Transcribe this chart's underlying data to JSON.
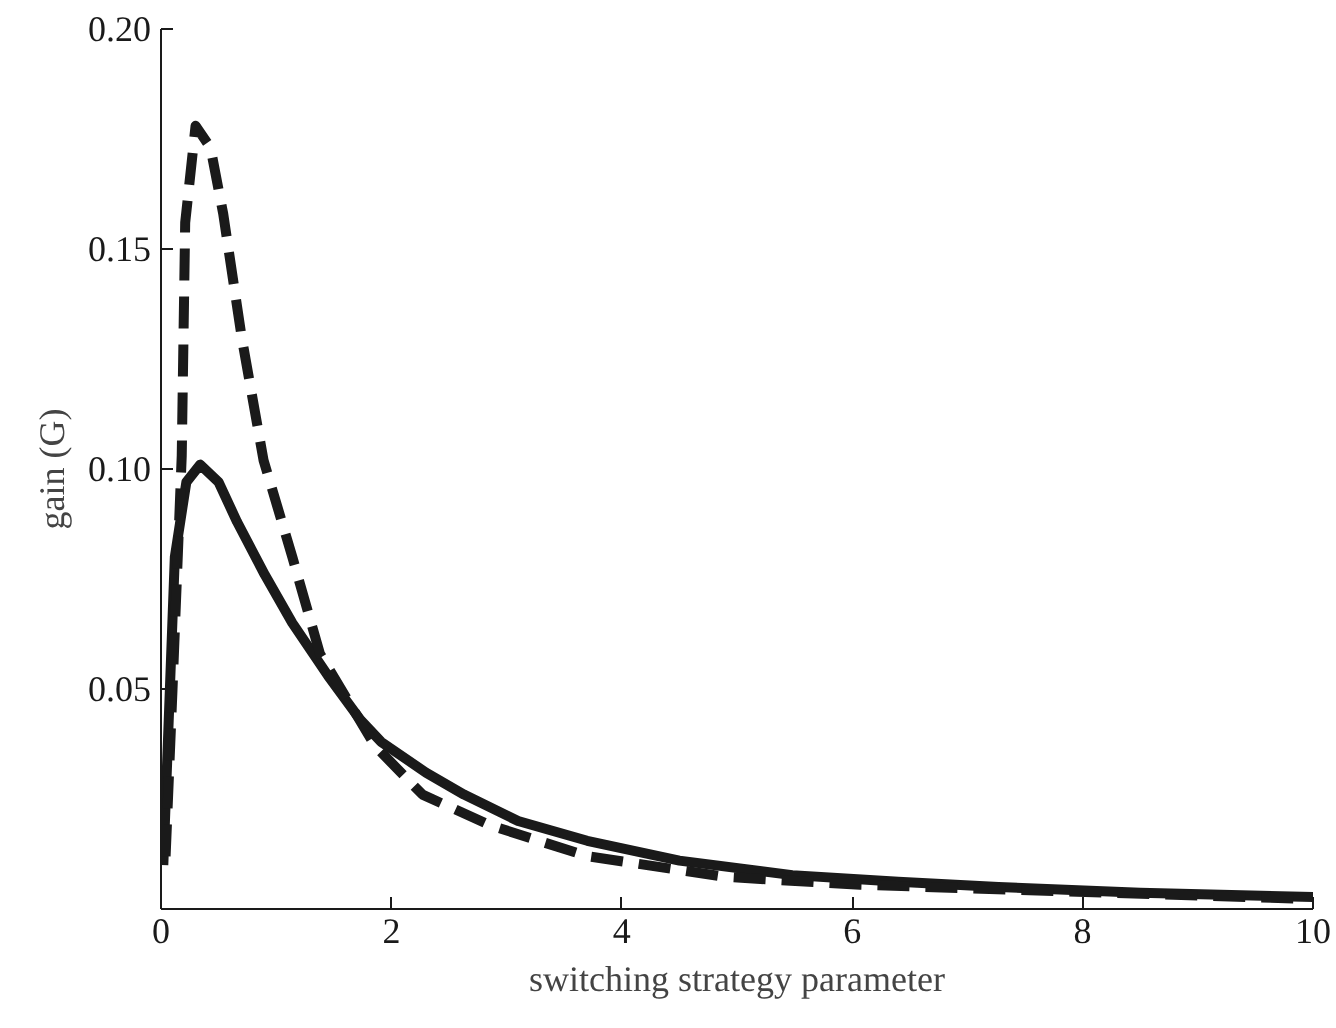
{
  "chart_data": {
    "type": "line",
    "xlabel": "switching strategy parameter",
    "ylabel": "gain (G)",
    "xlim": [
      0,
      10
    ],
    "ylim": [
      0,
      0.2
    ],
    "xticks": [
      0,
      2,
      4,
      6,
      8,
      10
    ],
    "yticks": [
      0.05,
      {
        "value": 0.1,
        "label": "0.10"
      },
      0.15,
      {
        "value": 0.2,
        "label": "0.20"
      }
    ],
    "grid": false,
    "series": [
      {
        "color": "#1a1a1a",
        "line_style": "solid",
        "x": [
          0.02,
          0.12,
          0.22,
          0.34,
          0.5,
          0.66,
          0.9,
          1.14,
          1.45,
          1.73,
          1.91,
          2.3,
          2.63,
          3.1,
          3.7,
          4.5,
          5.48,
          6.4,
          7.27,
          8.5,
          10
        ],
        "values": [
          0.01,
          0.08,
          0.097,
          0.101,
          0.097,
          0.088,
          0.076,
          0.065,
          0.053,
          0.043,
          0.038,
          0.031,
          0.026,
          0.02,
          0.0155,
          0.011,
          0.0077,
          0.0062,
          0.005,
          0.0037,
          0.0027
        ]
      },
      {
        "color": "#1a1a1a",
        "line_style": "dashed",
        "x": [
          0.04,
          0.1,
          0.18,
          0.21,
          0.3,
          0.43,
          0.54,
          0.7,
          0.89,
          1.14,
          1.38,
          1.86,
          2.27,
          2.86,
          3.7,
          4.9,
          6.07,
          7.86,
          9.95
        ],
        "values": [
          0.012,
          0.05,
          0.103,
          0.156,
          0.178,
          0.173,
          0.158,
          0.13,
          0.102,
          0.08,
          0.058,
          0.037,
          0.026,
          0.019,
          0.012,
          0.0073,
          0.0055,
          0.004,
          0.0023
        ]
      }
    ]
  }
}
